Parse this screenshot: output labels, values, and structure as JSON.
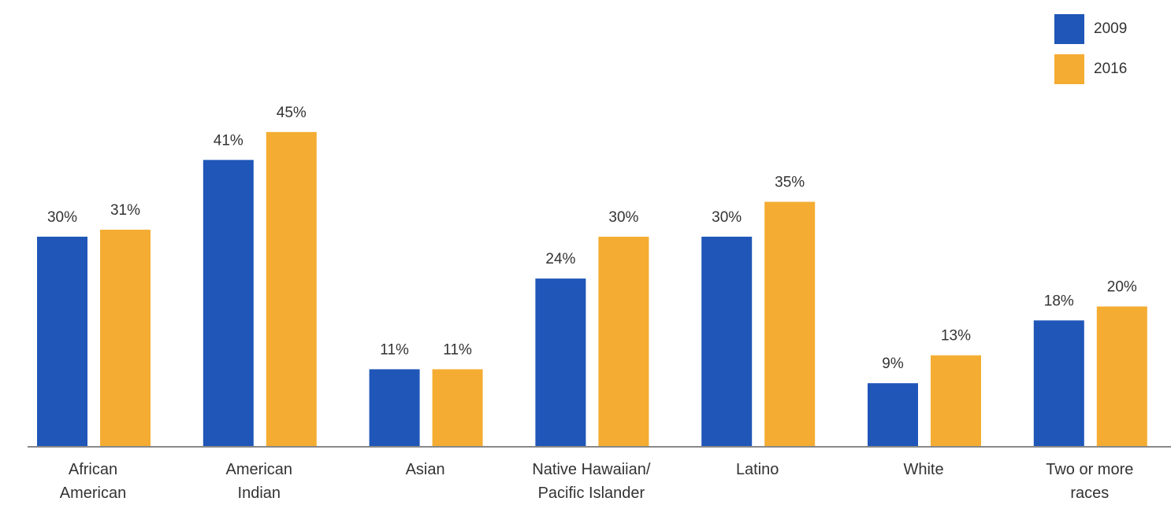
{
  "chart_data": {
    "type": "bar",
    "categories": [
      "African\nAmerican",
      "American\nIndian",
      "Asian",
      "Native Hawaiian/\nPacific Islander",
      "Latino",
      "White",
      "Two or more\nraces"
    ],
    "series": [
      {
        "name": "2009",
        "color": "#1f56b8",
        "values": [
          30,
          41,
          11,
          24,
          30,
          9,
          18
        ],
        "value_labels": [
          "30%",
          "41%",
          "11%",
          "24%",
          "30%",
          "9%",
          "18%"
        ]
      },
      {
        "name": "2016",
        "color": "#f4ad32",
        "values": [
          31,
          45,
          11,
          30,
          35,
          13,
          20
        ],
        "value_labels": [
          "31%",
          "45%",
          "11%",
          "30%",
          "35%",
          "13%",
          "20%"
        ]
      }
    ],
    "legend": "upper right"
  }
}
